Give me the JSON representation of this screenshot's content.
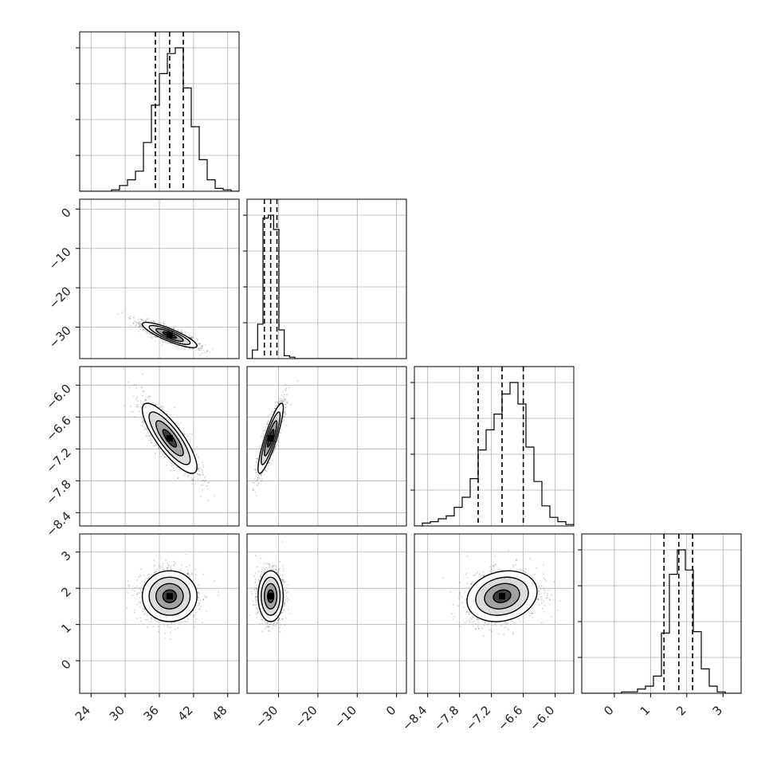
{
  "chart_data": {
    "type": "corner",
    "params": [
      {
        "range": [
          22,
          50
        ],
        "ticks": [
          24,
          30,
          36,
          42,
          48
        ],
        "tick_labels": [
          "24",
          "30",
          "36",
          "42",
          "48"
        ],
        "quantiles": [
          35.3,
          37.8,
          40.2
        ]
      },
      {
        "range": [
          -38,
          2.5
        ],
        "ticks": [
          -30,
          -20,
          -10,
          0
        ],
        "tick_labels": [
          "−30",
          "−20",
          "−10",
          "0"
        ],
        "ticks_row": [
          0,
          -10,
          -20,
          -30
        ],
        "tick_labels_row": [
          "0",
          "−10",
          "−20",
          "−30"
        ],
        "quantiles": [
          -33.6,
          -32.0,
          -30.4
        ]
      },
      {
        "range": [
          -8.65,
          -5.65
        ],
        "ticks": [
          -8.4,
          -7.8,
          -7.2,
          -6.6,
          -6.0
        ],
        "tick_labels": [
          "−8.4",
          "−7.8",
          "−7.2",
          "−6.6",
          "−6.0"
        ],
        "quantiles": [
          -7.45,
          -7.0,
          -6.6
        ]
      },
      {
        "range": [
          -0.9,
          3.5
        ],
        "ticks": [
          0,
          1,
          2,
          3
        ],
        "tick_labels": [
          "0",
          "1",
          "2",
          "3"
        ],
        "quantiles": [
          1.37,
          1.78,
          2.16
        ]
      }
    ],
    "histograms": [
      {
        "edges": [
          22.0,
          23.4,
          24.8,
          26.2,
          27.6,
          29.0,
          30.4,
          31.8,
          33.2,
          34.6,
          36.0,
          37.4,
          38.8,
          40.2,
          41.6,
          43.0,
          44.4,
          45.8,
          47.2,
          48.6,
          50.0
        ],
        "counts": [
          0,
          0,
          0,
          0,
          0.01,
          0.04,
          0.08,
          0.14,
          0.34,
          0.6,
          0.82,
          0.96,
          1.0,
          0.72,
          0.45,
          0.22,
          0.08,
          0.02,
          0.01,
          0
        ]
      },
      {
        "edges": [
          -38.0,
          -36.65,
          -35.3,
          -33.95,
          -32.6,
          -31.25,
          -29.9,
          -28.55,
          -27.2,
          -25.85,
          -24.5,
          -23.15,
          -21.8,
          -20.45,
          -19.1,
          -17.75,
          -16.4,
          -15.05,
          -13.7,
          -12.35,
          -11.0
        ],
        "counts": [
          0,
          0.06,
          0.24,
          0.98,
          1.0,
          0.9,
          0.2,
          0.02,
          0.01,
          0,
          0,
          0,
          0,
          0,
          0,
          0,
          0,
          0,
          0,
          0
        ]
      },
      {
        "edges": [
          -8.65,
          -8.5,
          -8.35,
          -8.2,
          -8.05,
          -7.9,
          -7.75,
          -7.6,
          -7.45,
          -7.3,
          -7.15,
          -7.0,
          -6.85,
          -6.7,
          -6.55,
          -6.4,
          -6.25,
          -6.1,
          -5.95,
          -5.8,
          -5.65
        ],
        "counts": [
          0,
          0.02,
          0.03,
          0.05,
          0.07,
          0.13,
          0.2,
          0.33,
          0.53,
          0.67,
          0.78,
          0.92,
          1.0,
          0.85,
          0.55,
          0.31,
          0.14,
          0.06,
          0.03,
          0.01
        ]
      },
      {
        "edges": [
          -0.9,
          -0.68,
          -0.46,
          -0.24,
          -0.02,
          0.2,
          0.42,
          0.64,
          0.86,
          1.08,
          1.3,
          1.52,
          1.74,
          1.96,
          2.18,
          2.4,
          2.62,
          2.84,
          3.06,
          3.28,
          3.5
        ],
        "counts": [
          0,
          0,
          0,
          0,
          0,
          0.01,
          0.01,
          0.03,
          0.05,
          0.12,
          0.42,
          0.83,
          1.0,
          0.86,
          0.43,
          0.17,
          0.05,
          0.01,
          0,
          0
        ]
      }
    ],
    "correlations": {
      "1-0": -0.85,
      "2-0": -0.82,
      "2-1": 0.87,
      "3-0": 0.0,
      "3-1": 0.0,
      "3-2": 0.18
    },
    "hist_yticks": [
      0.25,
      0.5,
      0.75,
      1.0
    ],
    "colors": {
      "line": "#000000",
      "grid": "#b0b0b0",
      "hist": "#000000",
      "points": "#000000"
    }
  }
}
